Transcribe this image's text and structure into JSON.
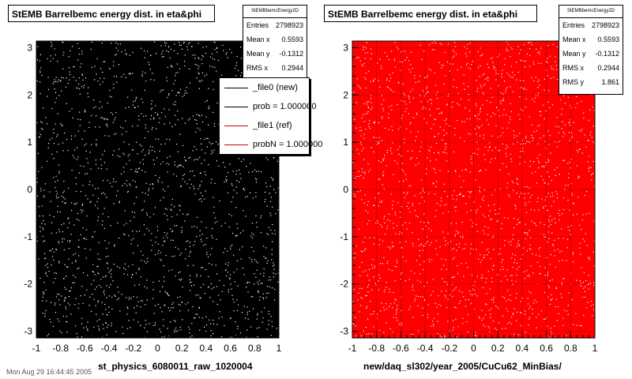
{
  "footer": "Mon Aug 29 16:44:45 2005",
  "chart_data": [
    {
      "type": "scatter",
      "title": "StEMB Barrelbemc energy dist. in eta&phi",
      "xlabel": "st_physics_6080011_raw_1020004",
      "ylabel": "",
      "xlim": [
        -1,
        1
      ],
      "ylim": [
        -3.14,
        3.14
      ],
      "xticks": [
        "-1",
        "-0.8",
        "-0.6",
        "-0.4",
        "-0.2",
        "0",
        "0.2",
        "0.4",
        "0.6",
        "0.8",
        "1"
      ],
      "yticks": [
        "-3",
        "-2",
        "-1",
        "0",
        "1",
        "2",
        "3"
      ],
      "background_color": "#000000",
      "point_color": "#ffffff",
      "grid": false,
      "stats": {
        "name": "StEMBbemcEnergy2D",
        "entries_label": "Entries",
        "entries": "2798923",
        "mean_x_label": "Mean x",
        "mean_x": "0.5593",
        "mean_y_label": "Mean y",
        "mean_y": "-0.1312",
        "rms_x_label": "RMS x",
        "rms_x": "0.2944"
      },
      "legend": {
        "placement": "top-right",
        "entries": [
          {
            "label": "_file0 (new)",
            "color": "#000000"
          },
          {
            "label": "prob = 1.000000",
            "color": "#000000"
          },
          {
            "label": "_file1 (ref)",
            "color": "#cc0000"
          },
          {
            "label": "probN = 1.000000",
            "color": "#cc0000"
          }
        ]
      }
    },
    {
      "type": "scatter",
      "title": "StEMB Barrelbemc energy dist. in eta&phi",
      "xlabel": "new/daq_sl302/year_2005/CuCu62_MinBias/",
      "ylabel": "",
      "xlim": [
        -1,
        1
      ],
      "ylim": [
        -3.14,
        3.14
      ],
      "xticks": [
        "-1",
        "-0.8",
        "-0.6",
        "-0.4",
        "-0.2",
        "0",
        "0.2",
        "0.4",
        "0.6",
        "0.8",
        "1"
      ],
      "yticks": [
        "-3",
        "-2",
        "-1",
        "0",
        "1",
        "2",
        "3"
      ],
      "background_color": "#ff0000",
      "point_color": "#ffffff",
      "grid": true,
      "stats": {
        "name": "StEMBbemcEnergy2D",
        "entries_label": "Entries",
        "entries": "2798923",
        "mean_x_label": "Mean x",
        "mean_x": "0.5593",
        "mean_y_label": "Mean y",
        "mean_y": "-0.1312",
        "rms_x_label": "RMS x",
        "rms_x": "0.2944",
        "rms_y_label": "RMS y",
        "rms_y": "1.861"
      }
    }
  ]
}
